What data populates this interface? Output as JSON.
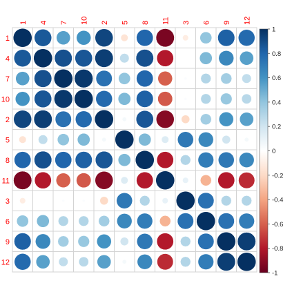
{
  "chart_data": {
    "type": "heatmap",
    "title": "",
    "xlabel": "",
    "ylabel": "",
    "x_labels": [
      "1",
      "4",
      "7",
      "10",
      "2",
      "5",
      "8",
      "11",
      "3",
      "6",
      "9",
      "12"
    ],
    "y_labels": [
      "1",
      "4",
      "7",
      "10",
      "2",
      "5",
      "8",
      "11",
      "3",
      "6",
      "9",
      "12"
    ],
    "values": [
      [
        1.0,
        0.85,
        0.55,
        0.6,
        0.92,
        -0.15,
        0.8,
        -0.95,
        -0.1,
        0.4,
        0.82,
        0.78
      ],
      [
        0.85,
        1.0,
        0.88,
        0.86,
        0.95,
        0.25,
        0.88,
        -0.8,
        0.0,
        0.45,
        0.65,
        0.55
      ],
      [
        0.55,
        0.88,
        1.0,
        0.97,
        0.75,
        0.4,
        0.8,
        -0.6,
        0.02,
        0.3,
        0.35,
        0.25
      ],
      [
        0.6,
        0.86,
        0.97,
        1.0,
        0.78,
        0.45,
        0.82,
        -0.62,
        0.02,
        0.3,
        0.38,
        0.28
      ],
      [
        0.92,
        0.95,
        0.75,
        0.78,
        1.0,
        0.05,
        0.86,
        -0.92,
        -0.2,
        0.35,
        0.6,
        0.55
      ],
      [
        -0.15,
        0.25,
        0.4,
        0.45,
        0.05,
        1.0,
        0.45,
        0.15,
        0.72,
        0.65,
        0.2,
        0.05
      ],
      [
        0.8,
        0.88,
        0.8,
        0.82,
        0.86,
        0.45,
        1.0,
        -0.8,
        0.3,
        0.7,
        0.72,
        0.65
      ],
      [
        -0.95,
        -0.8,
        -0.6,
        -0.62,
        -0.92,
        0.15,
        -0.8,
        1.0,
        0.1,
        -0.35,
        -0.8,
        -0.75
      ],
      [
        -0.1,
        0.0,
        0.02,
        0.02,
        -0.2,
        0.72,
        0.3,
        0.1,
        1.0,
        0.75,
        0.3,
        0.3
      ],
      [
        0.4,
        0.45,
        0.3,
        0.3,
        0.35,
        0.65,
        0.7,
        -0.35,
        0.75,
        1.0,
        0.75,
        0.7
      ],
      [
        0.82,
        0.65,
        0.35,
        0.38,
        0.6,
        0.2,
        0.72,
        -0.8,
        0.3,
        0.75,
        1.0,
        0.95
      ],
      [
        0.78,
        0.55,
        0.25,
        0.28,
        0.55,
        0.05,
        0.65,
        -0.75,
        0.3,
        0.7,
        0.95,
        1.0
      ]
    ],
    "color_scale": {
      "min": -1,
      "max": 1,
      "ticks": [
        "1",
        "0.8",
        "0.6",
        "0.4",
        "0.2",
        "0",
        "-0.2",
        "-0.4",
        "-0.6",
        "-0.8",
        "-1"
      ],
      "colors": [
        "#67001f",
        "#b2182b",
        "#d6604d",
        "#f4a582",
        "#fddbc7",
        "#ffffff",
        "#d1e5f0",
        "#92c5de",
        "#4393c3",
        "#2166ac",
        "#053061"
      ]
    },
    "grid": true,
    "legend": "right"
  }
}
